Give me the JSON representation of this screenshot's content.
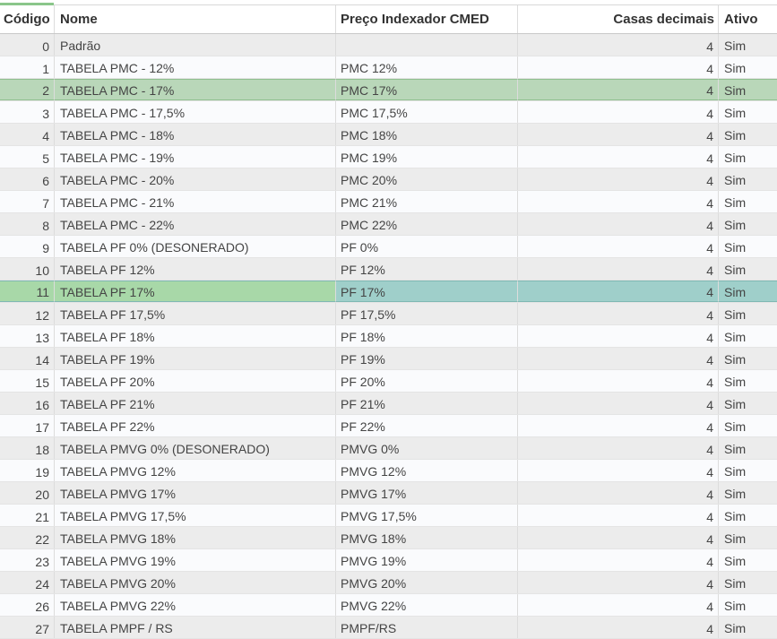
{
  "columns": {
    "code": "Código",
    "name": "Nome",
    "indexer": "Preço Indexador CMED",
    "decimals": "Casas decimais",
    "active": "Ativo"
  },
  "rows": [
    {
      "code": "0",
      "name": "Padrão",
      "indexer": "",
      "decimals": "4",
      "active": "Sim"
    },
    {
      "code": "1",
      "name": "TABELA PMC - 12%",
      "indexer": "PMC 12%",
      "decimals": "4",
      "active": "Sim"
    },
    {
      "code": "2",
      "name": "TABELA PMC - 17%",
      "indexer": "PMC 17%",
      "decimals": "4",
      "active": "Sim"
    },
    {
      "code": "3",
      "name": "TABELA PMC - 17,5%",
      "indexer": "PMC 17,5%",
      "decimals": "4",
      "active": "Sim"
    },
    {
      "code": "4",
      "name": "TABELA PMC - 18%",
      "indexer": "PMC 18%",
      "decimals": "4",
      "active": "Sim"
    },
    {
      "code": "5",
      "name": "TABELA PMC - 19%",
      "indexer": "PMC 19%",
      "decimals": "4",
      "active": "Sim"
    },
    {
      "code": "6",
      "name": "TABELA PMC - 20%",
      "indexer": "PMC 20%",
      "decimals": "4",
      "active": "Sim"
    },
    {
      "code": "7",
      "name": "TABELA PMC - 21%",
      "indexer": "PMC 21%",
      "decimals": "4",
      "active": "Sim"
    },
    {
      "code": "8",
      "name": "TABELA PMC - 22%",
      "indexer": "PMC 22%",
      "decimals": "4",
      "active": "Sim"
    },
    {
      "code": "9",
      "name": "TABELA PF 0% (DESONERADO)",
      "indexer": "PF 0%",
      "decimals": "4",
      "active": "Sim"
    },
    {
      "code": "10",
      "name": "TABELA PF 12%",
      "indexer": "PF 12%",
      "decimals": "4",
      "active": "Sim"
    },
    {
      "code": "11",
      "name": "TABELA PF 17%",
      "indexer": "PF 17%",
      "decimals": "4",
      "active": "Sim"
    },
    {
      "code": "12",
      "name": "TABELA PF 17,5%",
      "indexer": "PF 17,5%",
      "decimals": "4",
      "active": "Sim"
    },
    {
      "code": "13",
      "name": "TABELA PF 18%",
      "indexer": "PF 18%",
      "decimals": "4",
      "active": "Sim"
    },
    {
      "code": "14",
      "name": "TABELA PF 19%",
      "indexer": "PF 19%",
      "decimals": "4",
      "active": "Sim"
    },
    {
      "code": "15",
      "name": "TABELA PF 20%",
      "indexer": "PF 20%",
      "decimals": "4",
      "active": "Sim"
    },
    {
      "code": "16",
      "name": "TABELA PF 21%",
      "indexer": "PF 21%",
      "decimals": "4",
      "active": "Sim"
    },
    {
      "code": "17",
      "name": "TABELA PF 22%",
      "indexer": "PF 22%",
      "decimals": "4",
      "active": "Sim"
    },
    {
      "code": "18",
      "name": "TABELA PMVG 0% (DESONERADO)",
      "indexer": "PMVG 0%",
      "decimals": "4",
      "active": "Sim"
    },
    {
      "code": "19",
      "name": "TABELA PMVG 12%",
      "indexer": "PMVG 12%",
      "decimals": "4",
      "active": "Sim"
    },
    {
      "code": "20",
      "name": "TABELA PMVG 17%",
      "indexer": "PMVG 17%",
      "decimals": "4",
      "active": "Sim"
    },
    {
      "code": "21",
      "name": "TABELA PMVG 17,5%",
      "indexer": "PMVG 17,5%",
      "decimals": "4",
      "active": "Sim"
    },
    {
      "code": "22",
      "name": "TABELA PMVG 18%",
      "indexer": "PMVG 18%",
      "decimals": "4",
      "active": "Sim"
    },
    {
      "code": "23",
      "name": "TABELA PMVG 19%",
      "indexer": "PMVG 19%",
      "decimals": "4",
      "active": "Sim"
    },
    {
      "code": "24",
      "name": "TABELA PMVG 20%",
      "indexer": "PMVG 20%",
      "decimals": "4",
      "active": "Sim"
    },
    {
      "code": "26",
      "name": "TABELA PMVG 22%",
      "indexer": "PMVG 22%",
      "decimals": "4",
      "active": "Sim"
    },
    {
      "code": "27",
      "name": "TABELA PMPF / RS",
      "indexer": "PMPF/RS",
      "decimals": "4",
      "active": "Sim"
    }
  ],
  "highlighted_rows": {
    "hover_code": "2",
    "selected_code": "11"
  },
  "colors": {
    "hover": "#b9d7b9",
    "selected": "#9fcfca",
    "accent": "#8ac68a"
  }
}
